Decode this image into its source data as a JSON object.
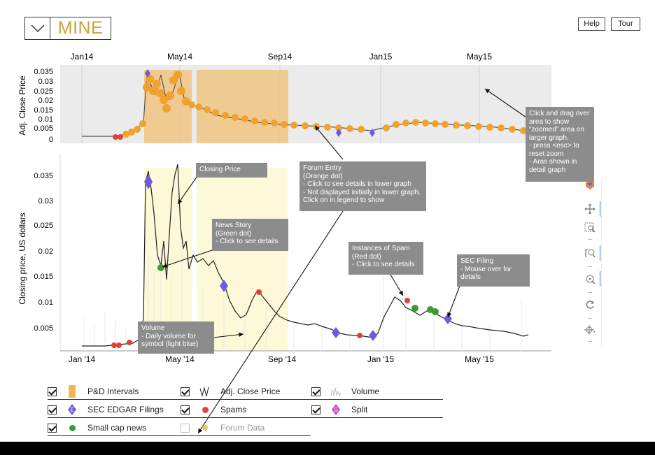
{
  "app": {
    "logo_text": "MINE",
    "help_label": "Help",
    "tour_label": "Tour"
  },
  "overview": {
    "ylabel": "Adj. Close Price",
    "x_ticks": [
      "Jan14",
      "May14",
      "Sep14",
      "Jan15",
      "May15"
    ],
    "y_ticks": [
      "0.035",
      "0.03",
      "0.025",
      "0.02",
      "0.015",
      "0.01",
      "0.005",
      "0"
    ]
  },
  "main": {
    "ylabel": "Closing price, US dollars",
    "x_ticks": [
      "Jan '14",
      "May '14",
      "Sep '14",
      "Jan '15",
      "May '15"
    ],
    "y_ticks": [
      "0.035",
      "0.03",
      "0.025",
      "0.02",
      "0.015",
      "0.01",
      "0.005"
    ]
  },
  "annotations": {
    "closing_price": "Closing Price",
    "forum_entry": "Forum Entry\n(Orange dot)\n- Click to see details in lower graph\n- Not displayed initially in lower graph. Click on in legend to show",
    "news_story": "News Story\n(Green dot)\n- Click to see details",
    "spam": "Instances of Spam\n(Red dot)\n- Click to see details",
    "sec_filing": "SEC Filing\n- Mouse over for details",
    "volume": "Volume\n- Daily volume for symbol (light blue)",
    "drag": "Click and drag over area to show “zoomed” area on larger graph.\n- press <esc> to reset zoom\n- Aras shown in detail graph"
  },
  "legend": {
    "pd_intervals": "P&D Intervals",
    "adj_close": "Adj. Close Price",
    "volume": "Volume",
    "sec_filings": "SEC EDGAR Filings",
    "spams": "Spams",
    "split": "Split",
    "small_cap_news": "Small cap news",
    "forum_data": "Forum Data"
  },
  "colors": {
    "pd_interval": "#f0b65c",
    "forum_dot": "#f0a22e",
    "spam_dot": "#e0413d",
    "news_dot": "#3a9a3a",
    "sec_diamond": "#6b5be0",
    "split_diamond": "#c84ac8",
    "price_line": "#222222"
  }
}
